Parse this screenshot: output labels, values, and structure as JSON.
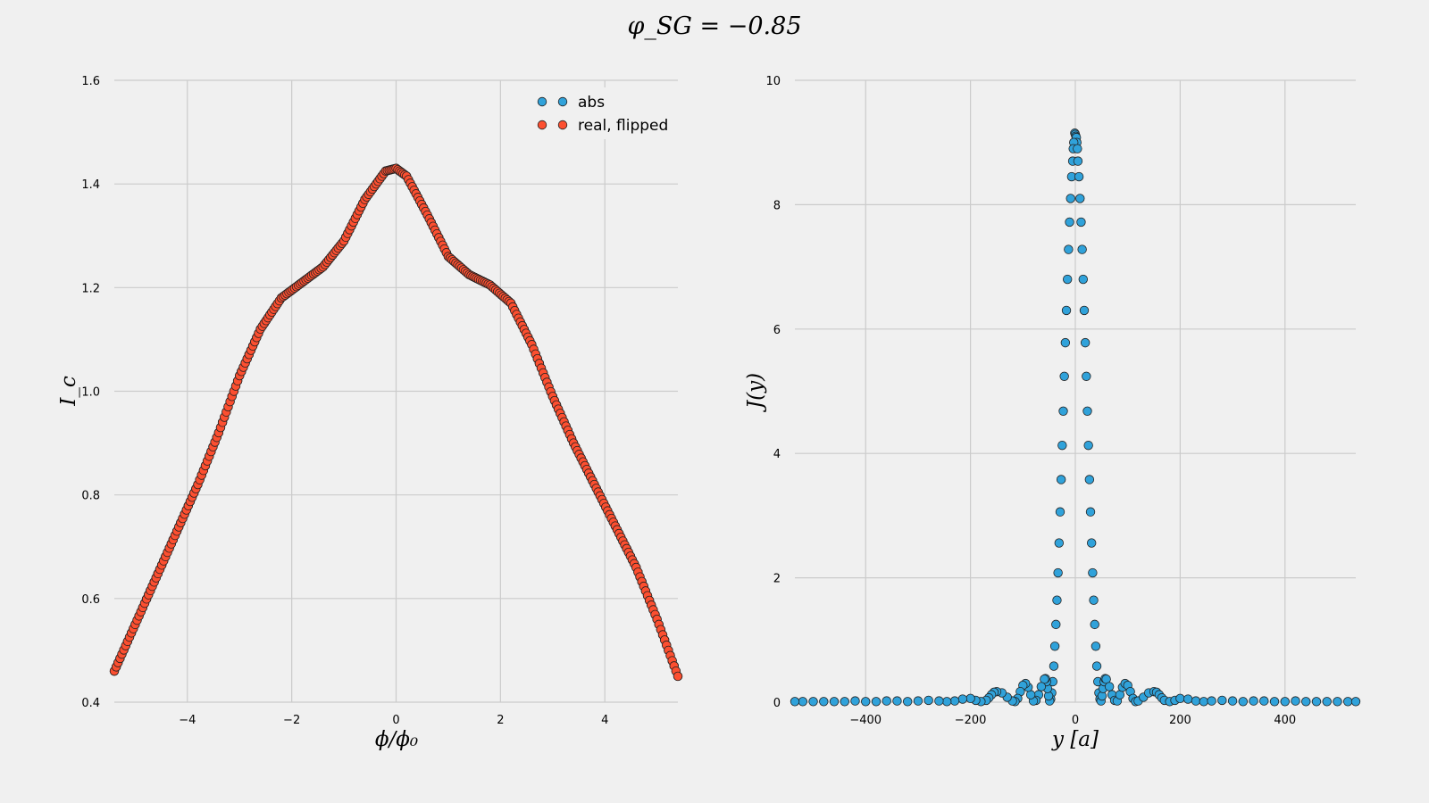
{
  "figure": {
    "suptitle": "φ_SG = −0.85"
  },
  "colors": {
    "background": "#f0f0f0",
    "grid": "#cbcbcb",
    "abs": "#30a2da",
    "real_flipped": "#fc4f30",
    "marker_edge": "#222222"
  },
  "chart_data": [
    {
      "type": "scatter",
      "xlabel": "ϕ/ϕ₀",
      "ylabel": "I_c",
      "xlim": [
        -5.4,
        5.4
      ],
      "ylim": [
        0.4,
        1.6
      ],
      "xticks": [
        -4,
        -2,
        0,
        2,
        4
      ],
      "xtick_labels": [
        "−4",
        "−2",
        "0",
        "2",
        "4"
      ],
      "yticks": [
        0.4,
        0.6,
        0.8,
        1.0,
        1.2,
        1.4,
        1.6
      ],
      "ytick_labels": [
        "0.4",
        "0.6",
        "0.8",
        "1.0",
        "1.2",
        "1.4",
        "1.6"
      ],
      "grid": true,
      "legend": {
        "position": "top-right",
        "entries": [
          "abs",
          "real, flipped"
        ]
      },
      "series": [
        {
          "name": "abs",
          "color": "abs",
          "x": [
            -5.4,
            -5.0,
            -4.6,
            -4.2,
            -3.8,
            -3.4,
            -3.0,
            -2.6,
            -2.2,
            -1.8,
            -1.4,
            -1.0,
            -0.6,
            -0.2,
            0.0,
            0.2,
            0.6,
            1.0,
            1.4,
            1.8,
            2.2,
            2.6,
            3.0,
            3.4,
            3.8,
            4.2,
            4.6,
            5.0,
            5.4
          ],
          "y": [
            0.46,
            0.55,
            0.64,
            0.73,
            0.82,
            0.92,
            1.03,
            1.12,
            1.18,
            1.21,
            1.24,
            1.29,
            1.37,
            1.425,
            1.43,
            1.415,
            1.34,
            1.26,
            1.225,
            1.205,
            1.17,
            1.09,
            0.99,
            0.9,
            0.82,
            0.74,
            0.66,
            0.56,
            0.45
          ]
        },
        {
          "name": "real, flipped",
          "color": "real_flipped",
          "x": [
            -5.4,
            -5.0,
            -4.6,
            -4.2,
            -3.8,
            -3.4,
            -3.0,
            -2.6,
            -2.2,
            -1.8,
            -1.4,
            -1.0,
            -0.6,
            -0.2,
            0.0,
            0.2,
            0.6,
            1.0,
            1.4,
            1.8,
            2.2,
            2.6,
            3.0,
            3.4,
            3.8,
            4.2,
            4.6,
            5.0,
            5.4
          ],
          "y": [
            0.46,
            0.55,
            0.64,
            0.73,
            0.82,
            0.92,
            1.03,
            1.12,
            1.18,
            1.21,
            1.24,
            1.29,
            1.37,
            1.425,
            1.43,
            1.415,
            1.34,
            1.26,
            1.225,
            1.205,
            1.17,
            1.09,
            0.99,
            0.9,
            0.82,
            0.74,
            0.66,
            0.56,
            0.45
          ]
        }
      ]
    },
    {
      "type": "scatter",
      "xlabel": "y [a]",
      "ylabel": "J(y)",
      "xlim": [
        -535,
        535
      ],
      "ylim": [
        0,
        10
      ],
      "xticks": [
        -400,
        -200,
        0,
        200,
        400
      ],
      "xtick_labels": [
        "−400",
        "−200",
        "0",
        "200",
        "400"
      ],
      "yticks": [
        0,
        2,
        4,
        6,
        8,
        10
      ],
      "ytick_labels": [
        "0",
        "2",
        "4",
        "6",
        "8",
        "10"
      ],
      "grid": true,
      "series": [
        {
          "name": "abs",
          "color": "abs",
          "x": [
            -1,
            0,
            1,
            2,
            3,
            -3,
            -4,
            4,
            -5,
            5,
            -7,
            7,
            -9,
            9,
            -11,
            11,
            -13,
            13,
            -15,
            15,
            -17,
            17,
            -19,
            19,
            -21,
            21,
            -23,
            23,
            -25,
            25,
            -27,
            27,
            -29,
            29,
            -31,
            31,
            -33,
            33,
            -35,
            35,
            -37,
            37,
            -39,
            39,
            -41,
            41,
            -43,
            43,
            -45,
            45,
            -47,
            47,
            -49,
            49,
            -51,
            51,
            -53,
            53,
            -55,
            55,
            -57,
            57,
            -59,
            59,
            -65,
            -70,
            -75,
            -80,
            -85,
            -90,
            -95,
            -100,
            -105,
            -110,
            -115,
            -120,
            -130,
            -140,
            -150,
            -155,
            -160,
            -165,
            -170,
            -180,
            -190,
            -200,
            -215,
            -230,
            -245,
            -260,
            -280,
            -300,
            -320,
            -340,
            -360,
            -380,
            -400,
            -420,
            -440,
            -460,
            -480,
            -500,
            -520,
            -535,
            65,
            70,
            75,
            80,
            85,
            90,
            95,
            100,
            105,
            110,
            115,
            120,
            130,
            140,
            150,
            155,
            160,
            165,
            170,
            180,
            190,
            200,
            215,
            230,
            245,
            260,
            280,
            300,
            320,
            340,
            360,
            380,
            400,
            420,
            440,
            460,
            480,
            500,
            520,
            535
          ],
          "y": [
            9.15,
            9.13,
            9.1,
            9.08,
            9.0,
            9.0,
            8.9,
            8.9,
            8.7,
            8.7,
            8.45,
            8.45,
            8.1,
            8.1,
            7.72,
            7.72,
            7.28,
            7.28,
            6.8,
            6.8,
            6.3,
            6.3,
            5.78,
            5.78,
            5.24,
            5.24,
            4.68,
            4.68,
            4.13,
            4.13,
            3.58,
            3.58,
            3.06,
            3.06,
            2.56,
            2.56,
            2.08,
            2.08,
            1.64,
            1.64,
            1.25,
            1.25,
            0.9,
            0.9,
            0.58,
            0.58,
            0.33,
            0.33,
            0.15,
            0.15,
            0.05,
            0.05,
            0.02,
            0.02,
            0.1,
            0.1,
            0.22,
            0.22,
            0.33,
            0.33,
            0.38,
            0.38,
            0.37,
            0.37,
            0.25,
            0.12,
            0.03,
            0.02,
            0.12,
            0.24,
            0.3,
            0.27,
            0.17,
            0.06,
            0.01,
            0.02,
            0.08,
            0.15,
            0.17,
            0.16,
            0.12,
            0.07,
            0.03,
            0.01,
            0.03,
            0.06,
            0.05,
            0.02,
            0.01,
            0.02,
            0.03,
            0.02,
            0.01,
            0.02,
            0.02,
            0.01,
            0.01,
            0.02,
            0.01,
            0.01,
            0.01,
            0.01,
            0.01,
            0.01,
            0.25,
            0.12,
            0.03,
            0.02,
            0.12,
            0.24,
            0.3,
            0.27,
            0.17,
            0.06,
            0.01,
            0.02,
            0.08,
            0.15,
            0.17,
            0.16,
            0.12,
            0.07,
            0.03,
            0.01,
            0.03,
            0.06,
            0.05,
            0.02,
            0.01,
            0.02,
            0.03,
            0.02,
            0.01,
            0.02,
            0.02,
            0.01,
            0.01,
            0.02,
            0.01,
            0.01,
            0.01,
            0.01,
            0.01,
            0.01
          ]
        }
      ]
    }
  ]
}
